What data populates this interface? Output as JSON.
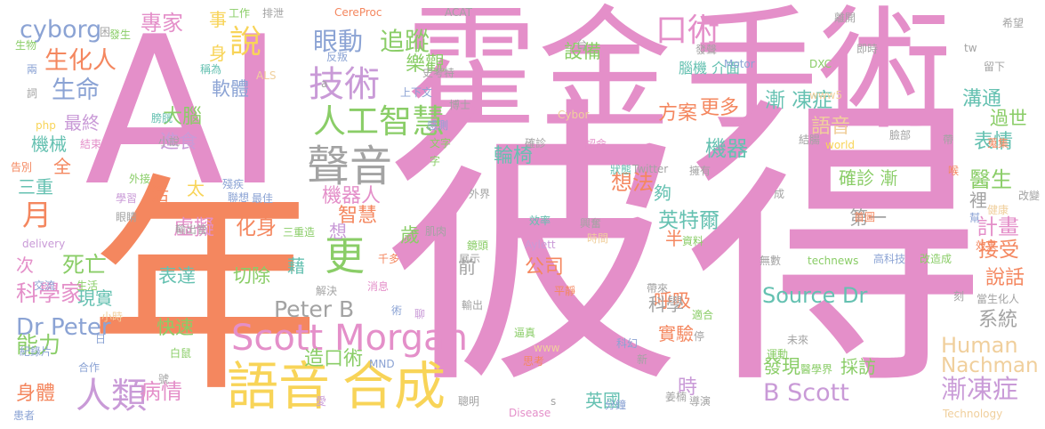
{
  "words": [
    {
      "text": "AI",
      "color": "#e48fc9"
    },
    {
      "text": "霍金",
      "color": "#e48fc9"
    },
    {
      "text": "手術",
      "color": "#e48fc9"
    },
    {
      "text": "彼得",
      "color": "#e48fc9"
    },
    {
      "text": "年",
      "color": "#f4875f"
    },
    {
      "text": "語音",
      "color": "#f8d458"
    },
    {
      "text": "合成",
      "color": "#f8d458"
    },
    {
      "text": "人類",
      "color": "#c99ad7"
    },
    {
      "text": "Scott Morgan",
      "color": "#e48fc9"
    },
    {
      "text": "聲音",
      "color": "#a3a3a3"
    },
    {
      "text": "更",
      "color": "#8acd67"
    },
    {
      "text": "技術",
      "color": "#c99ad7"
    },
    {
      "text": "人工智慧",
      "color": "#8acd67"
    },
    {
      "text": "眼動",
      "color": "#8ba3d4"
    },
    {
      "text": "追蹤",
      "color": "#8acd67"
    },
    {
      "text": "說",
      "color": "#f8d458"
    },
    {
      "text": "月",
      "color": "#f4875f"
    },
    {
      "text": "生化人",
      "color": "#f4875f"
    },
    {
      "text": "生命",
      "color": "#8ba3d4"
    },
    {
      "text": "cyborg",
      "color": "#8ba3d4"
    },
    {
      "text": "專家",
      "color": "#e48fc9"
    },
    {
      "text": "Dr Peter",
      "color": "#8ba3d4"
    },
    {
      "text": "死亡",
      "color": "#8acd67"
    },
    {
      "text": "科學家",
      "color": "#e48fc9"
    },
    {
      "text": "能力",
      "color": "#8acd67"
    },
    {
      "text": "病情",
      "color": "#e48fc9"
    },
    {
      "text": "身體",
      "color": "#f4875f"
    },
    {
      "text": "Peter B",
      "color": "#a3a3a3"
    },
    {
      "text": "Source Dr",
      "color": "#65c1b1"
    },
    {
      "text": "Human",
      "color": "#f0cf9c"
    },
    {
      "text": "Nachman",
      "color": "#f0cf9c"
    },
    {
      "text": "B Scott",
      "color": "#c99ad7"
    },
    {
      "text": "漸凍症",
      "color": "#c99ad7"
    },
    {
      "text": "醫生",
      "color": "#8acd67"
    },
    {
      "text": "口術",
      "color": "#e48fc9"
    },
    {
      "text": "輪椅",
      "color": "#65c1b1"
    },
    {
      "text": "想法",
      "color": "#f4875f"
    },
    {
      "text": "機器",
      "color": "#65c1b1"
    },
    {
      "text": "機器人",
      "color": "#e48fc9"
    },
    {
      "text": "智慧",
      "color": "#f4875f"
    },
    {
      "text": "公司",
      "color": "#f4875f"
    },
    {
      "text": "呼吸",
      "color": "#f4875f"
    },
    {
      "text": "實驗",
      "color": "#f4875f"
    },
    {
      "text": "英特爾",
      "color": "#65c1b1"
    },
    {
      "text": "表情",
      "color": "#65c1b1"
    },
    {
      "text": "溝通",
      "color": "#65c1b1"
    },
    {
      "text": "說話",
      "color": "#f4875f"
    },
    {
      "text": "系統",
      "color": "#a3a3a3"
    },
    {
      "text": "計畫",
      "color": "#e48fc9"
    },
    {
      "text": "接受",
      "color": "#f4875f"
    },
    {
      "text": "漸 凍症",
      "color": "#65c1b1"
    },
    {
      "text": "語音",
      "color": "#f0cf9c"
    },
    {
      "text": "方案",
      "color": "#f4875f"
    },
    {
      "text": "更多",
      "color": "#f4875f"
    },
    {
      "text": "確診 漸",
      "color": "#8acd67"
    },
    {
      "text": "虛擬",
      "color": "#e48fc9"
    },
    {
      "text": "化身",
      "color": "#f4875f"
    },
    {
      "text": "表達",
      "color": "#65c1b1"
    },
    {
      "text": "切除",
      "color": "#8acd67"
    },
    {
      "text": "快速",
      "color": "#8acd67"
    },
    {
      "text": "藉",
      "color": "#65c1b1"
    },
    {
      "text": "造口術",
      "color": "#8acd67"
    },
    {
      "text": "現實",
      "color": "#65c1b1"
    },
    {
      "text": "三重",
      "color": "#65c1b1"
    },
    {
      "text": "機械",
      "color": "#65c1b1"
    },
    {
      "text": "最終",
      "color": "#c99ad7"
    },
    {
      "text": "大腦",
      "color": "#8acd67"
    },
    {
      "text": "進食",
      "color": "#c99ad7"
    },
    {
      "text": "軟體",
      "color": "#8ba3d4"
    },
    {
      "text": "樂觀",
      "color": "#8acd67"
    },
    {
      "text": "設備",
      "color": "#8acd67"
    },
    {
      "text": "科學",
      "color": "#a3a3a3"
    },
    {
      "text": "發現",
      "color": "#8acd67"
    },
    {
      "text": "採訪",
      "color": "#8acd67"
    },
    {
      "text": "第一",
      "color": "#a3a3a3"
    },
    {
      "text": "時",
      "color": "#c99ad7"
    },
    {
      "text": "過世",
      "color": "#8acd67"
    },
    {
      "text": "活",
      "color": "#f4875f"
    },
    {
      "text": "太",
      "color": "#f8d458"
    },
    {
      "text": "夠",
      "color": "#65c1b1"
    },
    {
      "text": "歲",
      "color": "#8acd67"
    },
    {
      "text": "半",
      "color": "#f4875f"
    },
    {
      "text": "前",
      "color": "#a3a3a3"
    },
    {
      "text": "事",
      "color": "#f8d458"
    },
    {
      "text": "身",
      "color": "#f8d458"
    },
    {
      "text": "想",
      "color": "#c99ad7"
    },
    {
      "text": "全",
      "color": "#f4875f"
    },
    {
      "text": "英國",
      "color": "#65c1b1"
    },
    {
      "text": "次",
      "color": "#e48fc9"
    },
    {
      "text": "裡",
      "color": "#a3a3a3"
    },
    {
      "text": "腦機 介面",
      "color": "#65c1b1"
    },
    {
      "text": "工作",
      "color": "#8acd67"
    },
    {
      "text": "排泄",
      "color": "#a3a3a3"
    },
    {
      "text": "CereProc",
      "color": "#f4875f"
    },
    {
      "text": "ACAT",
      "color": "#a3a3a3"
    },
    {
      "text": "離開",
      "color": "#a3a3a3"
    },
    {
      "text": "希望",
      "color": "#a3a3a3"
    },
    {
      "text": "生物",
      "color": "#8acd67"
    },
    {
      "text": "發生",
      "color": "#8acd67"
    },
    {
      "text": "兩",
      "color": "#8ba3d4"
    },
    {
      "text": "詞",
      "color": "#a3a3a3"
    },
    {
      "text": "稱為",
      "color": "#65c1b1"
    },
    {
      "text": "ALS",
      "color": "#f0cf9c"
    },
    {
      "text": "反叛",
      "color": "#8ba3d4"
    },
    {
      "text": "史考特",
      "color": "#a3a3a3"
    },
    {
      "text": "上下文",
      "color": "#8ba3d4"
    },
    {
      "text": "台",
      "color": "#a3a3a3"
    },
    {
      "text": "Motor",
      "color": "#8ba3d4"
    },
    {
      "text": "DXC",
      "color": "#8acd67"
    },
    {
      "text": "即時",
      "color": "#a3a3a3"
    },
    {
      "text": "發聲",
      "color": "#a3a3a3"
    },
    {
      "text": "www5",
      "color": "#f0cf9c"
    },
    {
      "text": "tw",
      "color": "#a3a3a3"
    },
    {
      "text": "留下",
      "color": "#a3a3a3"
    },
    {
      "text": "php",
      "color": "#f8d458"
    },
    {
      "text": "膀胱",
      "color": "#65c1b1"
    },
    {
      "text": "結束",
      "color": "#e48fc9"
    },
    {
      "text": "博士",
      "color": "#a3a3a3"
    },
    {
      "text": "感測",
      "color": "#8ba3d4"
    },
    {
      "text": "Cybor",
      "color": "#f0cf9c"
    },
    {
      "text": "結腸",
      "color": "#a3a3a3"
    },
    {
      "text": "world",
      "color": "#f8d458"
    },
    {
      "text": "臉部",
      "color": "#a3a3a3"
    },
    {
      "text": "帶",
      "color": "#a3a3a3"
    },
    {
      "text": "蒐集",
      "color": "#f4875f"
    },
    {
      "text": "告別",
      "color": "#f4875f"
    },
    {
      "text": "小說",
      "color": "#a3a3a3"
    },
    {
      "text": "文字",
      "color": "#8acd67"
    },
    {
      "text": "字",
      "color": "#8acd67"
    },
    {
      "text": "確診",
      "color": "#a3a3a3"
    },
    {
      "text": "認命",
      "color": "#e48fc9"
    },
    {
      "text": "狀態",
      "color": "#65c1b1"
    },
    {
      "text": "Twitter",
      "color": "#a3a3a3"
    },
    {
      "text": "擁有",
      "color": "#a3a3a3"
    },
    {
      "text": "喉",
      "color": "#f4875f"
    },
    {
      "text": "外接",
      "color": "#8acd67"
    },
    {
      "text": "殘疾",
      "color": "#8ba3d4"
    },
    {
      "text": "學習",
      "color": "#c99ad7"
    },
    {
      "text": "聯想",
      "color": "#8ba3d4"
    },
    {
      "text": "最佳",
      "color": "#8ba3d4"
    },
    {
      "text": "外界",
      "color": "#a3a3a3"
    },
    {
      "text": "成",
      "color": "#a3a3a3"
    },
    {
      "text": "健康",
      "color": "#f0cf9c"
    },
    {
      "text": "改變",
      "color": "#a3a3a3"
    },
    {
      "text": "眼睛",
      "color": "#a3a3a3"
    },
    {
      "text": "輸出管",
      "color": "#a3a3a3"
    },
    {
      "text": "肌肉",
      "color": "#a3a3a3"
    },
    {
      "text": "效率",
      "color": "#65c1b1"
    },
    {
      "text": "興奮",
      "color": "#a3a3a3"
    },
    {
      "text": "時間",
      "color": "#f0cf9c"
    },
    {
      "text": "首圖",
      "color": "#f4875f"
    },
    {
      "text": "幫",
      "color": "#8ba3d4"
    },
    {
      "text": "delivery",
      "color": "#c99ad7"
    },
    {
      "text": "三重造",
      "color": "#8acd67"
    },
    {
      "text": "鏡頭",
      "color": "#8acd67"
    },
    {
      "text": "Aylett",
      "color": "#c99ad7"
    },
    {
      "text": "資料",
      "color": "#8acd67"
    },
    {
      "text": "展示",
      "color": "#a3a3a3"
    },
    {
      "text": "效果",
      "color": "#f4875f"
    },
    {
      "text": "千多",
      "color": "#f4875f"
    },
    {
      "text": "無數",
      "color": "#a3a3a3"
    },
    {
      "text": "technews",
      "color": "#8acd67"
    },
    {
      "text": "高科技",
      "color": "#8ba3d4"
    },
    {
      "text": "改造成",
      "color": "#8acd67"
    },
    {
      "text": "交流",
      "color": "#8ba3d4"
    },
    {
      "text": "生活",
      "color": "#8acd67"
    },
    {
      "text": "解決",
      "color": "#a3a3a3"
    },
    {
      "text": "消息",
      "color": "#e48fc9"
    },
    {
      "text": "平靜",
      "color": "#f4875f"
    },
    {
      "text": "帶來",
      "color": "#a3a3a3"
    },
    {
      "text": "刻",
      "color": "#a3a3a3"
    },
    {
      "text": "當生化人",
      "color": "#a3a3a3"
    },
    {
      "text": "術",
      "color": "#8ba3d4"
    },
    {
      "text": "聊",
      "color": "#c99ad7"
    },
    {
      "text": "輸出",
      "color": "#a3a3a3"
    },
    {
      "text": "適合",
      "color": "#8acd67"
    },
    {
      "text": "停",
      "color": "#a3a3a3"
    },
    {
      "text": "小時",
      "color": "#f0cf9c"
    },
    {
      "text": "日",
      "color": "#8ba3d4"
    },
    {
      "text": "逼真",
      "color": "#8acd67"
    },
    {
      "text": "www",
      "color": "#f0cf9c"
    },
    {
      "text": "科幻",
      "color": "#8ba3d4"
    },
    {
      "text": "未來",
      "color": "#a3a3a3"
    },
    {
      "text": "紀錄片",
      "color": "#8ba3d4"
    },
    {
      "text": "合作",
      "color": "#8ba3d4"
    },
    {
      "text": "白鼠",
      "color": "#8acd67"
    },
    {
      "text": "MND",
      "color": "#8ba3d4"
    },
    {
      "text": "思考",
      "color": "#f4875f"
    },
    {
      "text": "新",
      "color": "#a3a3a3"
    },
    {
      "text": "運動",
      "color": "#8acd67"
    },
    {
      "text": "醫學界",
      "color": "#8acd67"
    },
    {
      "text": "號",
      "color": "#a3a3a3"
    },
    {
      "text": "愛",
      "color": "#c99ad7"
    },
    {
      "text": "聰明",
      "color": "#a3a3a3"
    },
    {
      "text": "s",
      "color": "#a3a3a3"
    },
    {
      "text": "分鐘",
      "color": "#8ba3d4"
    },
    {
      "text": "Disease",
      "color": "#e48fc9"
    },
    {
      "text": "姜楠",
      "color": "#a3a3a3"
    },
    {
      "text": "導演",
      "color": "#a3a3a3"
    },
    {
      "text": "Technology",
      "color": "#f0cf9c"
    },
    {
      "text": "患者",
      "color": "#8ba3d4"
    },
    {
      "text": "困",
      "color": "#a3a3a3"
    },
    {
      "text": "a",
      "color": "#a3a3a3"
    }
  ]
}
